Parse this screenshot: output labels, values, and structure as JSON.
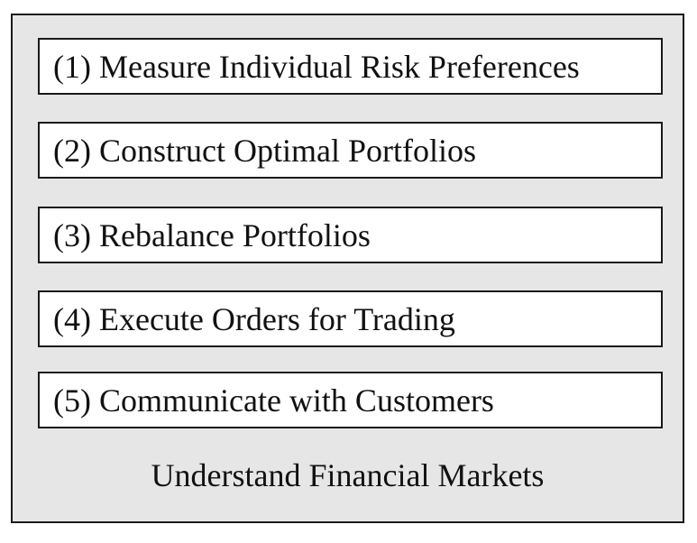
{
  "diagram": {
    "steps": [
      {
        "label": "(1) Measure Individual Risk Preferences"
      },
      {
        "label": "(2) Construct Optimal Portfolios"
      },
      {
        "label": "(3) Rebalance Portfolios"
      },
      {
        "label": "(4) Execute Orders for Trading"
      },
      {
        "label": "(5) Communicate with Customers"
      }
    ],
    "footer": "Understand Financial Markets"
  },
  "colors": {
    "outer_fill": "#e6e6e6",
    "box_fill": "#ffffff",
    "border": "#1a1a1a"
  }
}
